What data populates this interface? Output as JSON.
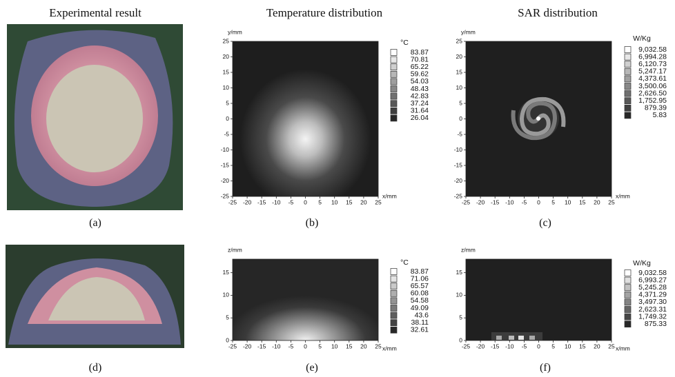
{
  "headers": [
    "Experimental result",
    "Temperature distribution",
    "SAR distribution"
  ],
  "panels": [
    {
      "label": "(a)"
    },
    {
      "label": "(b)",
      "y_label": "y/mm",
      "x_label": "x/mm",
      "xlim": [
        -25,
        25
      ],
      "ylim": [
        -25,
        25
      ],
      "xticks": [
        -25,
        -20,
        -15,
        -10,
        -5,
        0,
        5,
        10,
        15,
        20,
        25
      ],
      "yticks": [
        -25,
        -20,
        -15,
        -10,
        -5,
        0,
        5,
        10,
        15,
        20,
        25
      ],
      "legend_title": "°C",
      "legend_values": [
        83.87,
        70.81,
        65.22,
        59.62,
        54.03,
        48.43,
        42.83,
        37.24,
        31.64,
        26.04
      ]
    },
    {
      "label": "(c)",
      "y_label": "y/mm",
      "x_label": "x/mm",
      "xlim": [
        -25,
        25
      ],
      "ylim": [
        -25,
        25
      ],
      "xticks": [
        -25,
        -20,
        -15,
        -10,
        -5,
        0,
        5,
        10,
        15,
        20,
        25
      ],
      "yticks": [
        -25,
        -20,
        -15,
        -10,
        -5,
        0,
        5,
        10,
        15,
        20,
        25
      ],
      "legend_title": "W/Kg",
      "legend_values": [
        {
          "value": 9032.58,
          "label": "9,032.58"
        },
        {
          "value": 6994.28,
          "label": "6,994.28"
        },
        {
          "value": 6120.73,
          "label": "6,120.73"
        },
        {
          "value": 5247.17,
          "label": "5,247.17"
        },
        {
          "value": 4373.61,
          "label": "4,373.61"
        },
        {
          "value": 3500.06,
          "label": "3,500.06"
        },
        {
          "value": 2626.5,
          "label": "2,626.50"
        },
        {
          "value": 1752.95,
          "label": "1,752.95"
        },
        879.39,
        5.83
      ]
    },
    {
      "label": "(d)"
    },
    {
      "label": "(e)",
      "y_label": "z/mm",
      "x_label": "x/mm",
      "xlim": [
        -25,
        25
      ],
      "ylim": [
        0,
        18
      ],
      "xticks": [
        -25,
        -20,
        -15,
        -10,
        -5,
        0,
        5,
        10,
        15,
        20,
        25
      ],
      "yticks": [
        0,
        5,
        10,
        15
      ],
      "legend_title": "°C",
      "legend_values": [
        83.87,
        71.06,
        65.57,
        60.08,
        54.58,
        49.09,
        43.6,
        38.11,
        32.61
      ]
    },
    {
      "label": "(f)",
      "y_label": "z/mm",
      "x_label": "x/mm",
      "xlim": [
        -25,
        25
      ],
      "ylim": [
        0,
        18
      ],
      "xticks": [
        -25,
        -20,
        -15,
        -10,
        -5,
        0,
        5,
        10,
        15,
        20,
        25
      ],
      "yticks": [
        0,
        5,
        10,
        15
      ],
      "legend_title": "W/Kg",
      "legend_values": [
        {
          "value": 9032.58,
          "label": "9,032.58"
        },
        {
          "value": 6993.27,
          "label": "6,993.27"
        },
        {
          "value": 5245.28,
          "label": "5,245.28"
        },
        {
          "value": 4371.29,
          "label": "4,371.29"
        },
        {
          "value": 3497.3,
          "label": "3,497.30"
        },
        {
          "value": 2623.31,
          "label": "2,623.31"
        },
        {
          "value": 1749.32,
          "label": "1,749.32"
        },
        875.33
      ]
    }
  ]
}
